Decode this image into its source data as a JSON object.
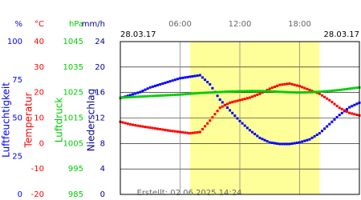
{
  "chart_data": {
    "type": "line",
    "date_left": "28.03.17",
    "date_right": "28.03.17",
    "created": "Erstellt: 02.06.2025 14:24",
    "xlim": [
      0,
      24
    ],
    "xticks": [
      {
        "value": 6,
        "label": "06:00"
      },
      {
        "value": 12,
        "label": "12:00"
      },
      {
        "value": 18,
        "label": "18:00"
      }
    ],
    "daylight": [
      7,
      20
    ],
    "grid": true,
    "axes": [
      {
        "unit": "%",
        "label": "Luftfeuchtigkeit",
        "color": "#0000ff",
        "ylim": [
          0,
          100
        ],
        "yticks": [
          0,
          25,
          50,
          75,
          100
        ]
      },
      {
        "unit": "°C",
        "label": "Temperatur",
        "color": "#ff0000",
        "ylim": [
          -20,
          40
        ],
        "yticks": [
          -20,
          -10,
          0,
          10,
          20,
          30,
          40
        ]
      },
      {
        "unit": "hPa",
        "label": "Luftdruck",
        "color": "#00cc00",
        "ylim": [
          985,
          1045
        ],
        "yticks": [
          985,
          995,
          1005,
          1015,
          1025,
          1035,
          1045
        ]
      },
      {
        "unit": "mm/h",
        "label": "Niederschlag",
        "color": "#000099",
        "ylim": [
          0,
          24
        ],
        "yticks": [
          0,
          4,
          8,
          12,
          16,
          20,
          24
        ]
      }
    ],
    "x": [
      0,
      1,
      2,
      3,
      4,
      5,
      6,
      7,
      8,
      9,
      10,
      11,
      12,
      13,
      14,
      15,
      16,
      17,
      18,
      19,
      20,
      21,
      22,
      23,
      24
    ],
    "series": [
      {
        "name": "Luftfeuchtigkeit",
        "axis": 0,
        "color": "#0000ff",
        "values": [
          63,
          65,
          67,
          70,
          72,
          74,
          76,
          77,
          78,
          72,
          62,
          55,
          48,
          42,
          37,
          34,
          33,
          33,
          34,
          36,
          40,
          46,
          52,
          57,
          60
        ]
      },
      {
        "name": "Temperatur",
        "axis": 1,
        "color": "#ff0000",
        "values": [
          8.5,
          7.5,
          6.8,
          6.2,
          5.6,
          5,
          4.5,
          4,
          4.5,
          9,
          14,
          16,
          17,
          18,
          19.5,
          21.5,
          23,
          23.5,
          22.5,
          21,
          19.5,
          17,
          14,
          12,
          11
        ]
      },
      {
        "name": "Luftdruck",
        "axis": 2,
        "color": "#00cc00",
        "values": [
          1023,
          1023.2,
          1023.4,
          1023.6,
          1023.8,
          1024,
          1024.2,
          1024.5,
          1024.8,
          1025,
          1025.2,
          1025.4,
          1025.5,
          1025.6,
          1025.6,
          1025.5,
          1025.3,
          1025.1,
          1025,
          1025.1,
          1025.3,
          1025.6,
          1026,
          1026.5,
          1027
        ]
      }
    ]
  }
}
